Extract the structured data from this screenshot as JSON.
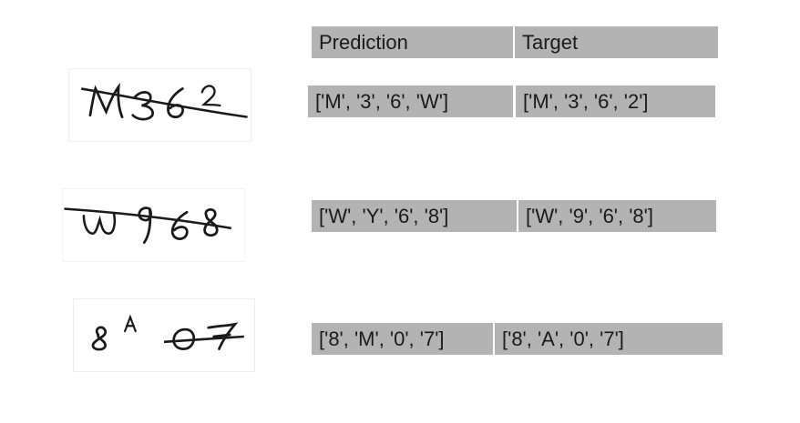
{
  "header": {
    "prediction_label": "Prediction",
    "target_label": "Target"
  },
  "rows": [
    {
      "image_text": "M362",
      "prediction": "['M', '3', '6', 'W']",
      "target": "['M', '3', '6', '2']"
    },
    {
      "image_text": "W968",
      "prediction": "['W', 'Y', '6', '8']",
      "target": "['W', '9', '6', '8']"
    },
    {
      "image_text": "8A07",
      "prediction": "['8', 'M', '0', '7']",
      "target": "['8', 'A', '0', '7']"
    }
  ],
  "colors": {
    "cell_background": "#b3b3b3",
    "ink": "#1a1a1a"
  }
}
